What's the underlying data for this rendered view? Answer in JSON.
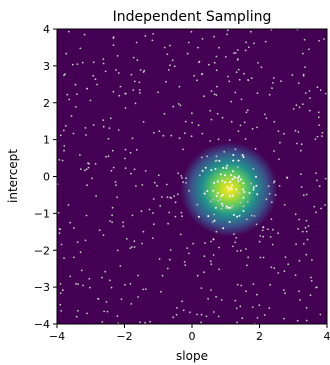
{
  "chart_data": {
    "type": "heatmap",
    "title": "Independent Sampling",
    "xlabel": "slope",
    "ylabel": "intercept",
    "xlim": [
      -4,
      4
    ],
    "ylim": [
      -4,
      4
    ],
    "xticks": [
      "−4",
      "−2",
      "0",
      "2",
      "4"
    ],
    "yticks": [
      "4",
      "3",
      "2",
      "1",
      "0",
      "−1",
      "−2",
      "−3",
      "−4"
    ],
    "xtick_values": [
      -4,
      -2,
      0,
      2,
      4
    ],
    "ytick_values": [
      4,
      3,
      2,
      1,
      0,
      -1,
      -2,
      -3,
      -4
    ],
    "density_peak": {
      "x": 1.1,
      "y": -0.35,
      "sigma_x": 0.45,
      "sigma_y": 0.4
    },
    "colormap": [
      "#440154",
      "#3b528b",
      "#21918c",
      "#5ec962",
      "#fde725"
    ],
    "background_color": "#440154",
    "sample_point_color": "#c8c8c8",
    "highlight_point_color": "#ffffff",
    "grid": false,
    "legend": "none"
  }
}
